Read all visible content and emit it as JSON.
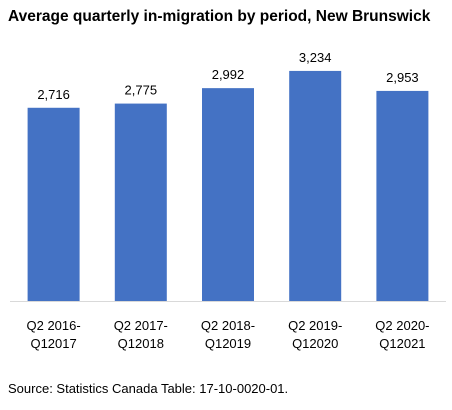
{
  "chart_data": {
    "type": "bar",
    "title": "Average quarterly in-migration by period, New Brunswick",
    "categories": [
      [
        "Q2 2016-",
        "Q12017"
      ],
      [
        "Q2 2017-",
        "Q12018"
      ],
      [
        "Q2 2018-",
        "Q12019"
      ],
      [
        "Q2 2019-",
        "Q12020"
      ],
      [
        "Q2 2020-",
        "Q12021"
      ]
    ],
    "values": [
      2716,
      2775,
      2992,
      3234,
      2953
    ],
    "data_labels": [
      "2,716",
      "2,775",
      "2,992",
      "3,234",
      "2,953"
    ],
    "ylim": [
      0,
      3500
    ],
    "bar_color": "#4472C4",
    "grid": false,
    "legend": "none"
  },
  "source": "Source: Statistics Canada Table: 17-10-0020-01."
}
